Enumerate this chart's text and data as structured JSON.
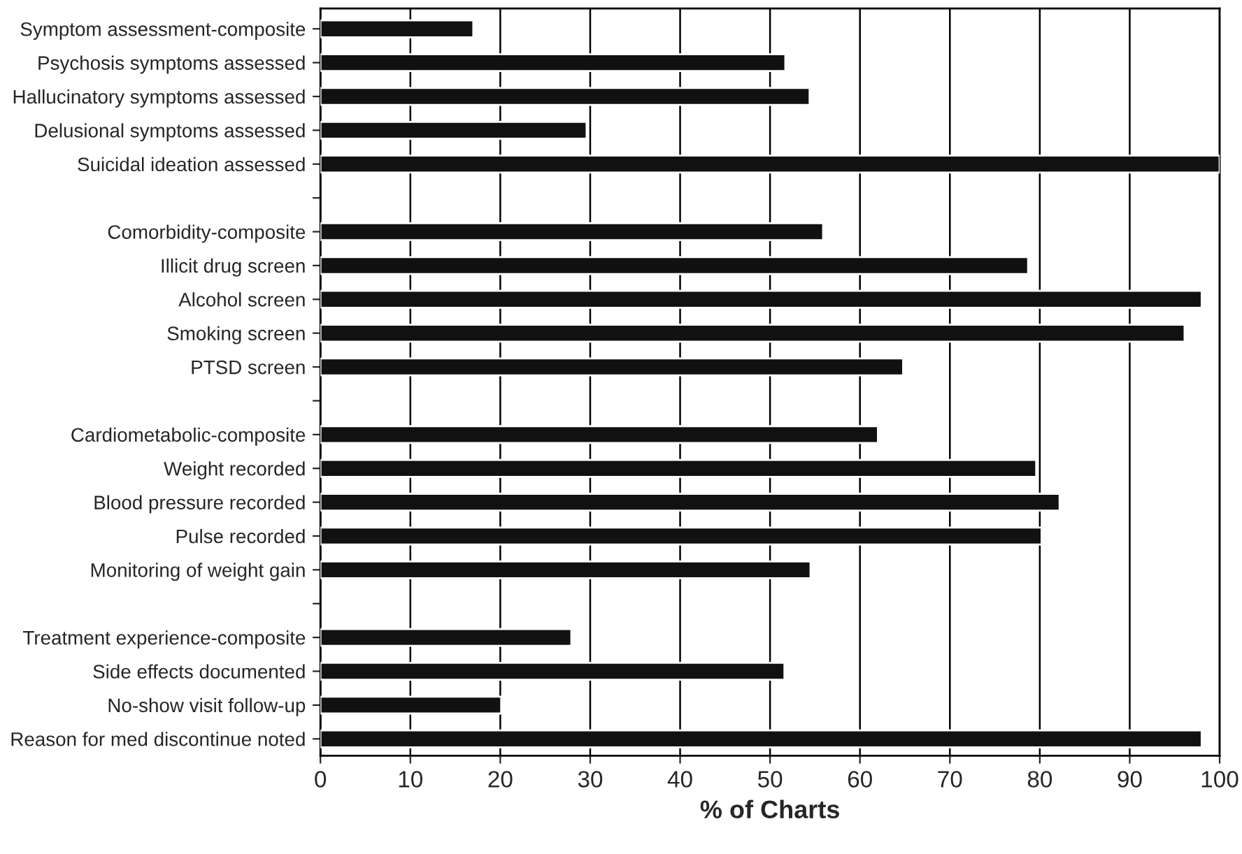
{
  "chart_data": {
    "type": "bar",
    "orientation": "horizontal",
    "xlabel": "% of Charts",
    "categories": [
      "Symptom assessment-composite",
      "Psychosis symptoms assessed",
      "Hallucinatory symptoms assessed",
      "Delusional symptoms assessed",
      "Suicidal ideation assessed",
      null,
      "Comorbidity-composite",
      "Illicit drug screen",
      "Alcohol screen",
      "Smoking screen",
      "PTSD screen",
      null,
      "Cardiometabolic-composite",
      "Weight recorded",
      "Blood pressure recorded",
      "Pulse recorded",
      "Monitoring of weight gain",
      null,
      "Treatment experience-composite",
      "Side effects documented",
      "No-show visit follow-up",
      "Reason for med discontinue noted"
    ],
    "values": [
      17,
      51.7,
      54.4,
      29.6,
      100,
      null,
      55.9,
      78.7,
      98,
      96.1,
      64.8,
      null,
      62,
      79.6,
      82.2,
      80.2,
      54.5,
      null,
      27.9,
      51.6,
      20.1,
      98
    ],
    "color": "#111111",
    "xlim": [
      0,
      100
    ],
    "xticks": [
      0,
      10,
      20,
      30,
      40,
      50,
      60,
      70,
      80,
      90,
      100
    ],
    "grid": "x",
    "legend": false
  }
}
